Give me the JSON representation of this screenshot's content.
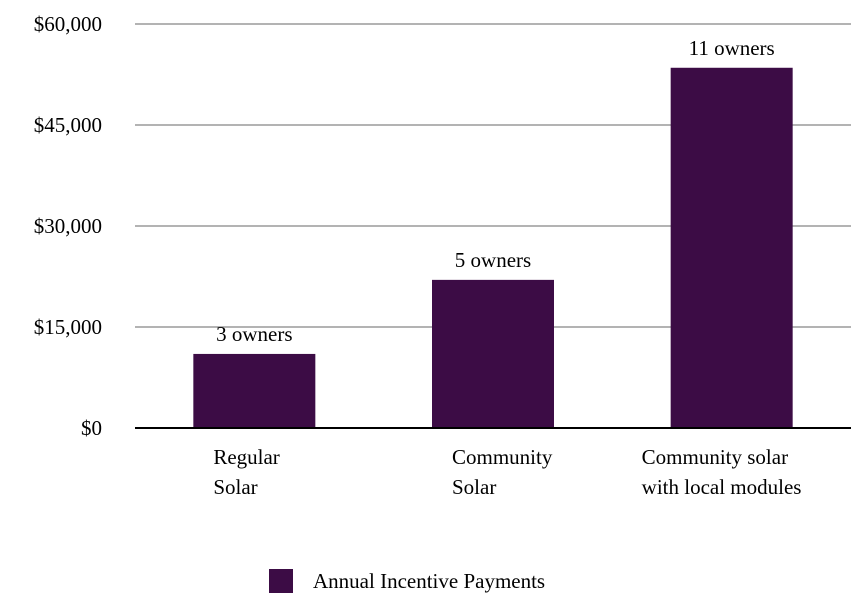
{
  "chart_data": {
    "type": "bar",
    "categories": [
      [
        "Regular",
        "Solar"
      ],
      [
        "Community",
        "Solar"
      ],
      [
        "Community solar",
        "with local modules"
      ]
    ],
    "series": [
      {
        "name": "Annual Incentive Payments",
        "values": [
          11000,
          22000,
          53500
        ],
        "data_labels": [
          "3 owners",
          "5 owners",
          "11 owners"
        ]
      }
    ],
    "y_ticks": [
      0,
      15000,
      30000,
      45000,
      60000
    ],
    "y_tick_labels": [
      "$0",
      "$15,000",
      "$30,000",
      "$45,000",
      "$60,000"
    ],
    "ylim": [
      0,
      60000
    ],
    "grid": true,
    "legend_position": "bottom",
    "colors": {
      "bar": "#3c0c45",
      "grid": "#b3b3b3",
      "axis": "#000000"
    }
  }
}
